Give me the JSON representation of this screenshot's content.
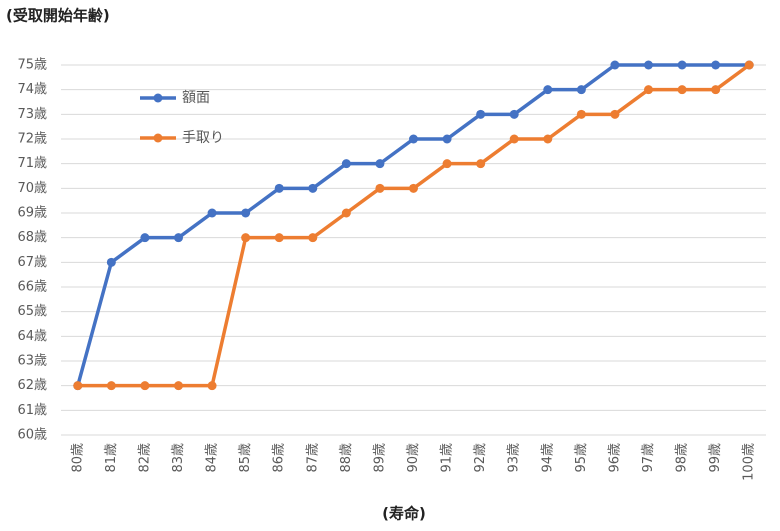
{
  "chart_data": {
    "type": "line",
    "y_label": "(受取開始年齢)",
    "x_label": "(寿命)",
    "categories": [
      "80歳",
      "81歳",
      "82歳",
      "83歳",
      "84歳",
      "85歳",
      "86歳",
      "87歳",
      "88歳",
      "89歳",
      "90歳",
      "91歳",
      "92歳",
      "93歳",
      "94歳",
      "95歳",
      "96歳",
      "97歳",
      "98歳",
      "99歳",
      "100歳"
    ],
    "series": [
      {
        "name": "額面",
        "color": "#4472c4",
        "values": [
          62,
          67,
          68,
          68,
          69,
          69,
          70,
          70,
          71,
          71,
          72,
          72,
          73,
          73,
          74,
          74,
          75,
          75,
          75,
          75,
          75
        ]
      },
      {
        "name": "手取り",
        "color": "#ed7d31",
        "values": [
          62,
          62,
          62,
          62,
          62,
          68,
          68,
          68,
          69,
          70,
          70,
          71,
          71,
          72,
          72,
          73,
          73,
          74,
          74,
          74,
          75
        ]
      }
    ],
    "ylim": [
      60,
      75
    ],
    "yticks": [
      {
        "value": 60,
        "label": "60歳"
      },
      {
        "value": 61,
        "label": "61歳"
      },
      {
        "value": 62,
        "label": "62歳"
      },
      {
        "value": 63,
        "label": "63歳"
      },
      {
        "value": 64,
        "label": "64歳"
      },
      {
        "value": 65,
        "label": "65歳"
      },
      {
        "value": 66,
        "label": "66歳"
      },
      {
        "value": 67,
        "label": "67歳"
      },
      {
        "value": 68,
        "label": "68歳"
      },
      {
        "value": 69,
        "label": "69歳"
      },
      {
        "value": 70,
        "label": "70歳"
      },
      {
        "value": 71,
        "label": "71歳"
      },
      {
        "value": 72,
        "label": "72歳"
      },
      {
        "value": 73,
        "label": "73歳"
      },
      {
        "value": 74,
        "label": "74歳"
      },
      {
        "value": 75,
        "label": "75歳"
      }
    ],
    "grid": true,
    "legend": "upper left"
  }
}
